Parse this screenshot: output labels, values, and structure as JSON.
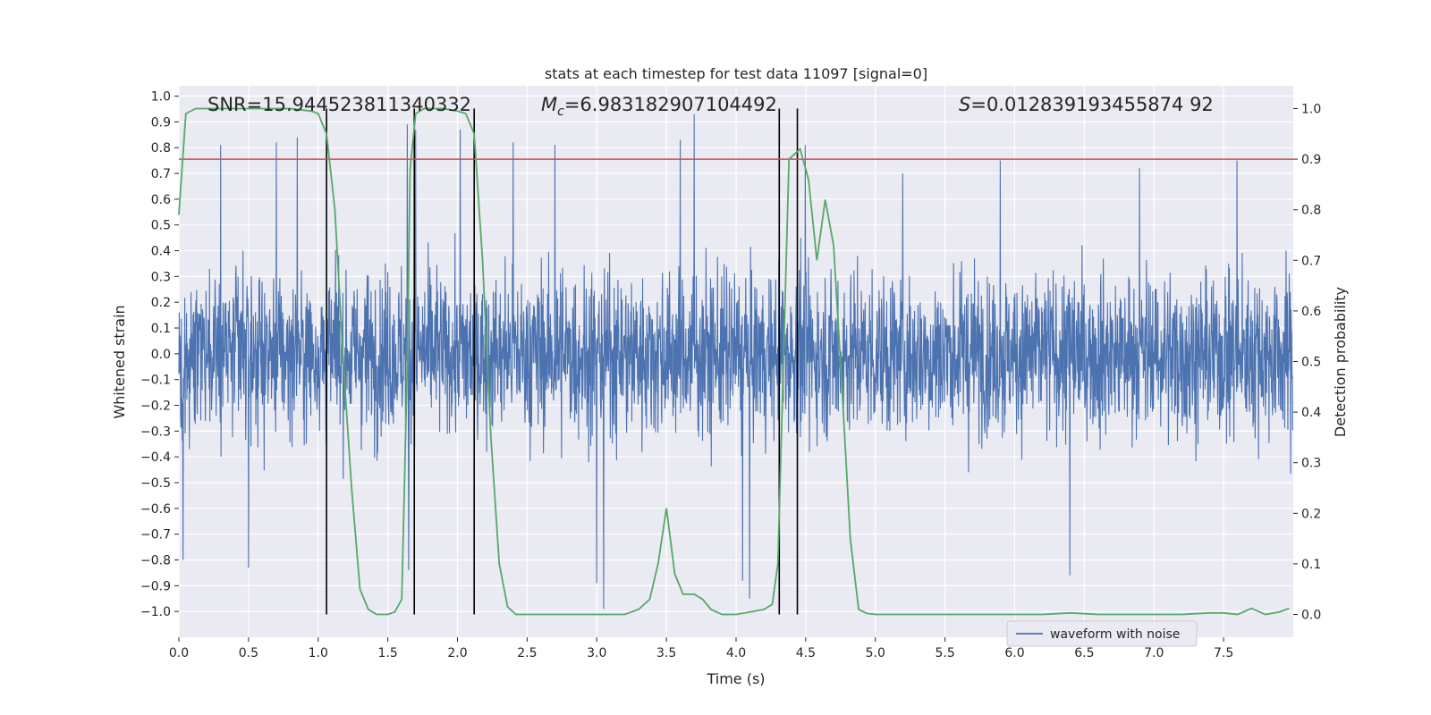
{
  "chart_data": {
    "type": "line",
    "title": "stats at each timestep for test data 11097 [signal=0]",
    "xlabel": "Time (s)",
    "ylabel_left": "Whitened strain",
    "ylabel_right": "Detection probability",
    "xlim": [
      0.0,
      8.0
    ],
    "ylim_left": [
      -1.1,
      1.04
    ],
    "ylim_right": [
      -0.045,
      1.045
    ],
    "x_ticks": [
      "0.0",
      "0.5",
      "1.0",
      "1.5",
      "2.0",
      "2.5",
      "3.0",
      "3.5",
      "4.0",
      "4.5",
      "5.0",
      "5.5",
      "6.0",
      "6.5",
      "7.0",
      "7.5"
    ],
    "x_tick_values": [
      0.0,
      0.5,
      1.0,
      1.5,
      2.0,
      2.5,
      3.0,
      3.5,
      4.0,
      4.5,
      5.0,
      5.5,
      6.0,
      6.5,
      7.0,
      7.5
    ],
    "y_left_ticks": [
      "1.0",
      "0.9",
      "0.8",
      "0.7",
      "0.6",
      "0.5",
      "0.4",
      "0.3",
      "0.2",
      "0.1",
      "0.0",
      "−0.1",
      "−0.2",
      "−0.3",
      "−0.4",
      "−0.5",
      "−0.6",
      "−0.7",
      "−0.8",
      "−0.9",
      "−1.0"
    ],
    "y_left_tick_values": [
      1.0,
      0.9,
      0.8,
      0.7,
      0.6,
      0.5,
      0.4,
      0.3,
      0.2,
      0.1,
      0.0,
      -0.1,
      -0.2,
      -0.3,
      -0.4,
      -0.5,
      -0.6,
      -0.7,
      -0.8,
      -0.9,
      -1.0
    ],
    "y_right_ticks": [
      "1.0",
      "0.9",
      "0.8",
      "0.7",
      "0.6",
      "0.5",
      "0.4",
      "0.3",
      "0.2",
      "0.1",
      "0.0"
    ],
    "y_right_tick_values": [
      1.0,
      0.9,
      0.8,
      0.7,
      0.6,
      0.5,
      0.4,
      0.3,
      0.2,
      0.1,
      0.0
    ],
    "annotations": {
      "snr": "SNR=15.944523811340332",
      "mc_symbol": "M",
      "mc_sub": "c",
      "mc_value": "=6.983182907104492",
      "s_symbol": "S",
      "s_value": "=0.012839193455874 92"
    },
    "threshold": 0.9,
    "vertical_lines_x": [
      1.06,
      1.69,
      2.12,
      4.31,
      4.44
    ],
    "waveform": {
      "name": "waveform with noise",
      "color": "#4c72b0",
      "description_note": "dense noisy strain samples, roughly within [-1, 1]",
      "spikes": [
        [
          0.03,
          -0.8
        ],
        [
          0.3,
          0.81
        ],
        [
          0.5,
          -0.83
        ],
        [
          0.7,
          0.82
        ],
        [
          0.85,
          0.84
        ],
        [
          1.64,
          0.89
        ],
        [
          1.65,
          -0.84
        ],
        [
          1.7,
          0.87
        ],
        [
          2.02,
          0.87
        ],
        [
          2.4,
          0.82
        ],
        [
          2.7,
          0.81
        ],
        [
          3.05,
          -0.99
        ],
        [
          3.0,
          -0.89
        ],
        [
          3.7,
          0.93
        ],
        [
          3.6,
          0.83
        ],
        [
          4.1,
          -0.95
        ],
        [
          4.05,
          -0.88
        ],
        [
          4.5,
          0.81
        ],
        [
          5.9,
          0.75
        ],
        [
          6.4,
          -0.86
        ],
        [
          7.6,
          0.75
        ],
        [
          6.9,
          0.72
        ],
        [
          5.2,
          0.7
        ]
      ]
    },
    "probability": {
      "color": "#55a868",
      "x": [
        0.0,
        0.05,
        0.12,
        0.2,
        0.4,
        0.6,
        0.8,
        0.95,
        1.0,
        1.06,
        1.12,
        1.18,
        1.24,
        1.3,
        1.36,
        1.42,
        1.5,
        1.55,
        1.6,
        1.64,
        1.66,
        1.7,
        1.76,
        1.82,
        1.9,
        2.0,
        2.06,
        2.12,
        2.18,
        2.24,
        2.3,
        2.36,
        2.42,
        2.5,
        2.6,
        2.8,
        3.0,
        3.1,
        3.2,
        3.3,
        3.38,
        3.44,
        3.5,
        3.56,
        3.62,
        3.7,
        3.76,
        3.82,
        3.9,
        4.0,
        4.1,
        4.2,
        4.26,
        4.3,
        4.34,
        4.38,
        4.42,
        4.46,
        4.52,
        4.58,
        4.64,
        4.7,
        4.76,
        4.82,
        4.88,
        4.94,
        5.0,
        5.2,
        5.4,
        5.6,
        5.8,
        6.0,
        6.2,
        6.4,
        6.6,
        6.8,
        7.0,
        7.2,
        7.4,
        7.5,
        7.6,
        7.7,
        7.8,
        7.9,
        7.97
      ],
      "y": [
        0.79,
        0.99,
        1.0,
        1.0,
        1.0,
        1.0,
        1.0,
        0.995,
        0.99,
        0.95,
        0.8,
        0.5,
        0.25,
        0.05,
        0.01,
        0.0,
        0.0,
        0.005,
        0.03,
        0.5,
        0.88,
        0.99,
        1.0,
        1.0,
        1.0,
        0.995,
        0.99,
        0.95,
        0.7,
        0.35,
        0.1,
        0.015,
        0.0,
        0.0,
        0.0,
        0.0,
        0.0,
        0.0,
        0.0,
        0.01,
        0.03,
        0.1,
        0.21,
        0.08,
        0.04,
        0.04,
        0.03,
        0.01,
        0.0,
        0.0,
        0.005,
        0.01,
        0.02,
        0.1,
        0.5,
        0.9,
        0.91,
        0.92,
        0.86,
        0.7,
        0.82,
        0.73,
        0.45,
        0.15,
        0.01,
        0.002,
        0.0,
        0.0,
        0.0,
        0.0,
        0.0,
        0.0,
        0.0,
        0.003,
        0.0,
        0.0,
        0.0,
        0.0,
        0.003,
        0.003,
        0.0,
        0.012,
        0.0,
        0.005,
        0.012
      ]
    },
    "threshold_color": "#c44e52",
    "legend": {
      "placement": "bottom-right",
      "entries": [
        "waveform with noise"
      ]
    }
  }
}
